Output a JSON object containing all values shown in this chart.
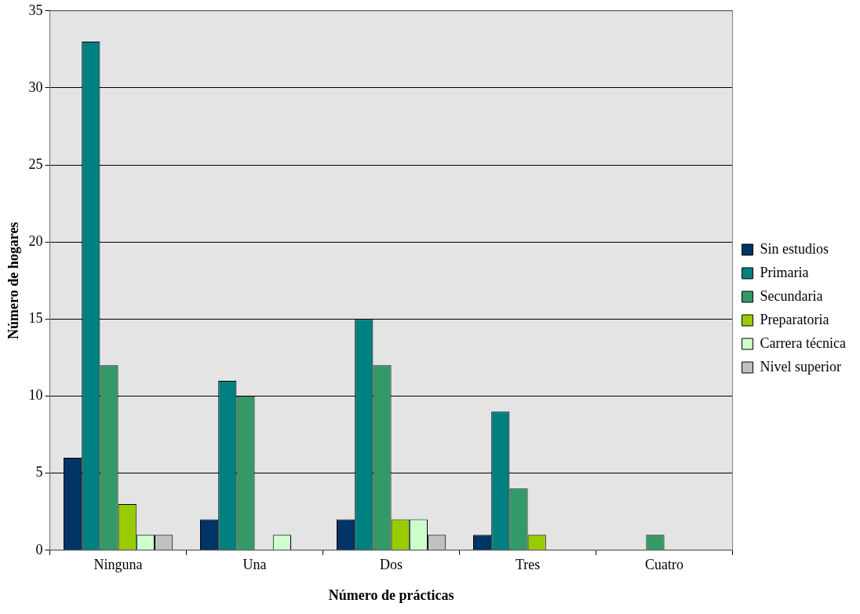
{
  "chart_data": {
    "type": "bar",
    "xlabel": "Número de prácticas",
    "ylabel": "Número de hogares",
    "categories": [
      "Ninguna",
      "Una",
      "Dos",
      "Tres",
      "Cuatro"
    ],
    "series": [
      {
        "name": "Sin estudios",
        "color": "#003366",
        "values": [
          6,
          2,
          2,
          1,
          0
        ]
      },
      {
        "name": "Primaria",
        "color": "#008080",
        "values": [
          33,
          11,
          15,
          9,
          0
        ]
      },
      {
        "name": "Secundaria",
        "color": "#339966",
        "values": [
          12,
          10,
          12,
          4,
          1
        ]
      },
      {
        "name": "Preparatoria",
        "color": "#99cc00",
        "values": [
          3,
          0,
          2,
          1,
          0
        ]
      },
      {
        "name": "Carrera técnica",
        "color": "#ccffcc",
        "values": [
          1,
          1,
          2,
          0,
          0
        ]
      },
      {
        "name": "Nivel superior",
        "color": "#c0c0c0",
        "values": [
          1,
          0,
          1,
          0,
          0
        ]
      }
    ],
    "ylim": [
      0,
      35
    ],
    "yticks": [
      0,
      5,
      10,
      15,
      20,
      25,
      30,
      35
    ],
    "grid": "y",
    "legend": "right"
  }
}
